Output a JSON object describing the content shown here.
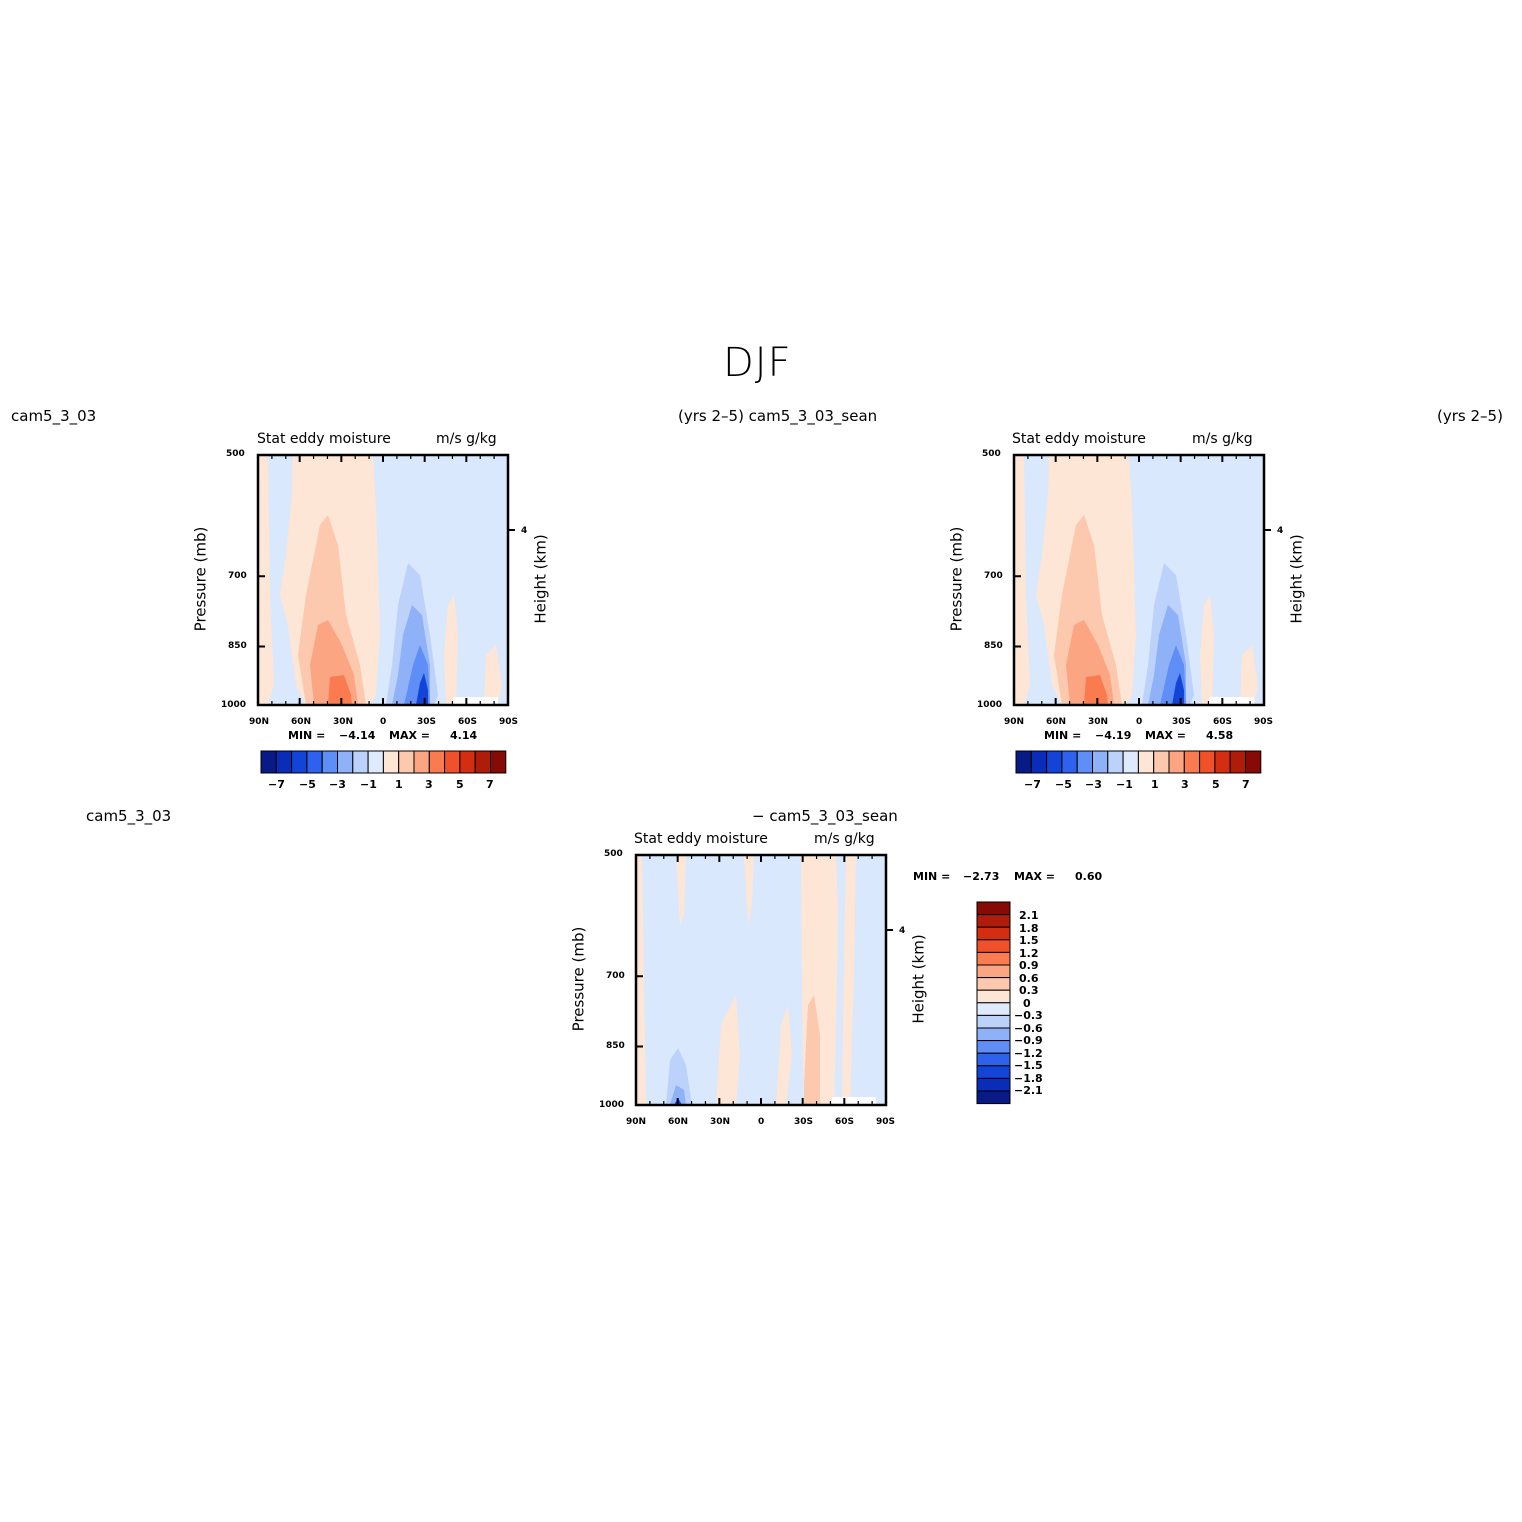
{
  "main_title": "DJF",
  "colors": {
    "main_scale": [
      "#081a86",
      "#0a2cb8",
      "#1344d8",
      "#2e62ee",
      "#5f8ef6",
      "#8fb1f8",
      "#bcd2fb",
      "#dfeafc",
      "#fde6d6",
      "#fcc8ae",
      "#fba582",
      "#f97b4f",
      "#f0502a",
      "#d52d12",
      "#b01c0a",
      "#860a05"
    ],
    "diff_scale": [
      "#860a05",
      "#b01c0a",
      "#d52d12",
      "#f0502a",
      "#f97b4f",
      "#fba582",
      "#fcc8ae",
      "#fde6d6",
      "#dfeafc",
      "#bcd2fb",
      "#8fb1f8",
      "#5f8ef6",
      "#2e62ee",
      "#1344d8",
      "#0a2cb8",
      "#081a86"
    ],
    "light_red": "#fde6d6",
    "light_blue": "#d9e8fc"
  },
  "chart_data": [
    {
      "type": "contour",
      "left_label": "cam5_3_03",
      "right_label": "(yrs 2–5) cam5_3_03_sean",
      "title_left": "Stat eddy moisture",
      "title_right": "m/s g/kg",
      "xlabel": "",
      "ylabel": "Pressure (mb)",
      "y2label": "Height (km)",
      "x_ticks": [
        "90N",
        "60N",
        "30N",
        "0",
        "30S",
        "60S",
        "90S"
      ],
      "y_ticks": [
        "500",
        "700",
        "850",
        "1000"
      ],
      "y2_ticks": [
        "4"
      ],
      "min_label": "MIN =",
      "min_value": "−4.14",
      "max_label": "MAX =",
      "max_value": "4.14",
      "colorbar_labels": [
        "−7",
        "−5",
        "−3",
        "−1",
        "1",
        "3",
        "5",
        "7"
      ]
    },
    {
      "type": "contour",
      "left_label": "",
      "right_label": "(yrs 2–5)",
      "title_left": "Stat eddy moisture",
      "title_right": "m/s g/kg",
      "xlabel": "",
      "ylabel": "Pressure (mb)",
      "y2label": "Height (km)",
      "x_ticks": [
        "90N",
        "60N",
        "30N",
        "0",
        "30S",
        "60S",
        "90S"
      ],
      "y_ticks": [
        "500",
        "700",
        "850",
        "1000"
      ],
      "y2_ticks": [
        "4"
      ],
      "min_label": "MIN =",
      "min_value": "−4.19",
      "max_label": "MAX =",
      "max_value": "4.58",
      "colorbar_labels": [
        "−7",
        "−5",
        "−3",
        "−1",
        "1",
        "3",
        "5",
        "7"
      ]
    },
    {
      "type": "contour",
      "left_label": "cam5_3_03",
      "right_label": "− cam5_3_03_sean",
      "title_left": "Stat eddy moisture",
      "title_right": "m/s g/kg",
      "xlabel": "",
      "ylabel": "Pressure (mb)",
      "y2label": "Height (km)",
      "x_ticks": [
        "90N",
        "60N",
        "30N",
        "0",
        "30S",
        "60S",
        "90S"
      ],
      "y_ticks": [
        "500",
        "700",
        "850",
        "1000"
      ],
      "y2_ticks": [
        "4"
      ],
      "min_label": "MIN =",
      "min_value": "−2.73",
      "max_label": "MAX =",
      "max_value": "0.60",
      "colorbar_labels": [
        "2.1",
        "1.8",
        "1.5",
        "1.2",
        "0.9",
        "0.6",
        "0.3",
        "0",
        "−0.3",
        "−0.6",
        "−0.9",
        "−1.2",
        "−1.5",
        "−1.8",
        "−2.1"
      ]
    }
  ]
}
